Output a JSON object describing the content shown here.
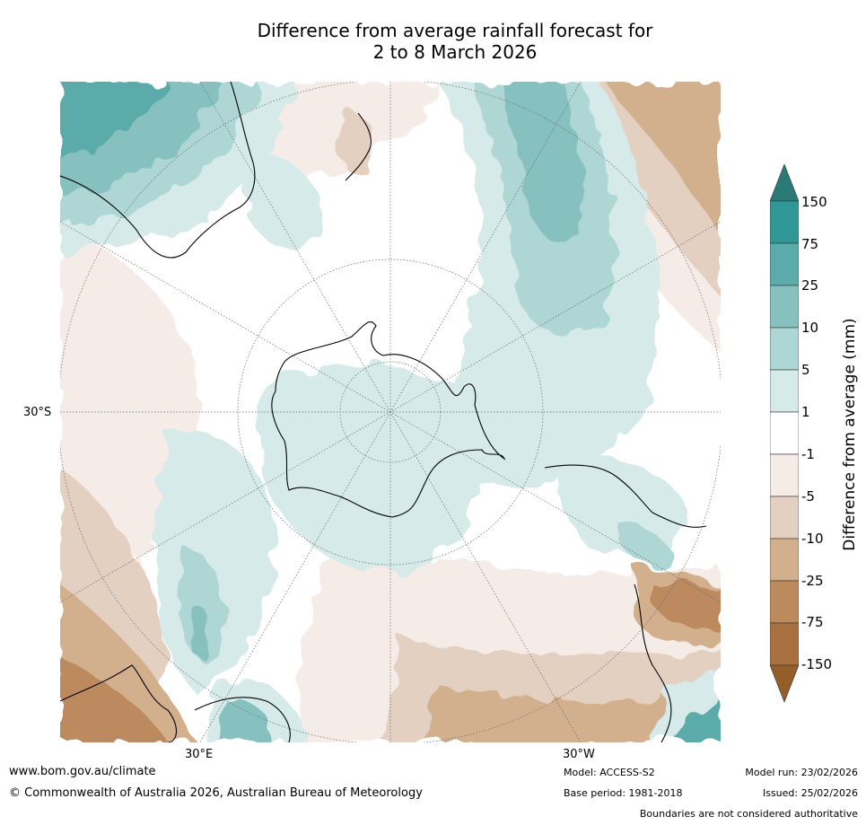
{
  "title": {
    "line1": "Difference from average rainfall forecast for",
    "line2": "2 to 8 March 2026"
  },
  "map": {
    "projection": "south-polar stereographic",
    "labels": {
      "lat": "30°S",
      "lon_left": "30°E",
      "lon_right": "30°W"
    }
  },
  "colorbar": {
    "title": "Difference from average (mm)",
    "ticks": [
      "150",
      "75",
      "25",
      "10",
      "5",
      "1",
      "-1",
      "-5",
      "-10",
      "-25",
      "-75",
      "-150"
    ],
    "colors": {
      "over": "#2a7a76",
      "bins": [
        "#2f9896",
        "#5aaba9",
        "#86c1c0",
        "#add6d5",
        "#d5eae9",
        "#ffffff",
        "#f5ece7",
        "#e4d0c0",
        "#d2b08e",
        "#bd8a5e",
        "#a8703f"
      ],
      "under": "#955d27"
    }
  },
  "footer": {
    "url": "www.bom.gov.au/climate",
    "copyright": "© Commonwealth of Australia 2026, Australian Bureau of Meteorology",
    "model": "Model: ACCESS-S2",
    "base_period": "Base period: 1981-2018",
    "model_run": "Model run: 23/02/2026",
    "issued": "Issued: 25/02/2026",
    "disclaimer": "Boundaries are not considered authoritative"
  }
}
